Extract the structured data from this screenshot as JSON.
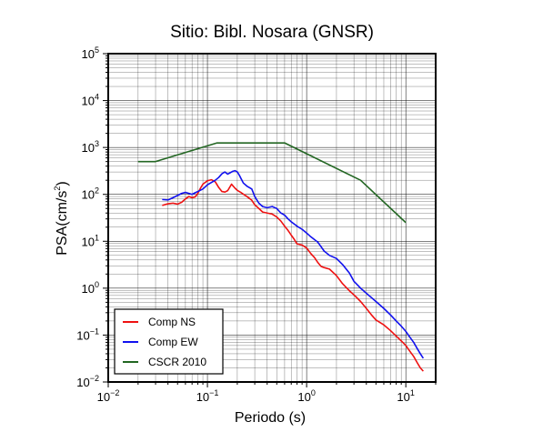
{
  "chart_data": {
    "type": "line",
    "title": "Sitio: Bibl. Nosara (GNSR)",
    "xlabel": "Periodo (s)",
    "ylabel_main": "PSA(cm/s",
    "ylabel_exp": "2",
    "ylabel_close": ")",
    "xscale": "log",
    "yscale": "log",
    "xlim": [
      0.01,
      20
    ],
    "ylim": [
      0.01,
      100000
    ],
    "grid": true,
    "legend_position": "bottom-left",
    "x_ticks": [
      {
        "base": "10",
        "exp": "−2"
      },
      {
        "base": "10",
        "exp": "−1"
      },
      {
        "base": "10",
        "exp": "0"
      },
      {
        "base": "10",
        "exp": "1"
      }
    ],
    "y_ticks": [
      {
        "base": "10",
        "exp": "−2"
      },
      {
        "base": "10",
        "exp": "−1"
      },
      {
        "base": "10",
        "exp": "0"
      },
      {
        "base": "10",
        "exp": "1"
      },
      {
        "base": "10",
        "exp": "2"
      },
      {
        "base": "10",
        "exp": "3"
      },
      {
        "base": "10",
        "exp": "4"
      },
      {
        "base": "10",
        "exp": "5"
      }
    ],
    "series": [
      {
        "name": "Comp NS",
        "color": "#ee1111",
        "points": [
          [
            0.035,
            58
          ],
          [
            0.04,
            63
          ],
          [
            0.045,
            65
          ],
          [
            0.05,
            62
          ],
          [
            0.055,
            68
          ],
          [
            0.06,
            80
          ],
          [
            0.065,
            90
          ],
          [
            0.07,
            85
          ],
          [
            0.075,
            88
          ],
          [
            0.08,
            105
          ],
          [
            0.085,
            135
          ],
          [
            0.09,
            165
          ],
          [
            0.1,
            195
          ],
          [
            0.11,
            205
          ],
          [
            0.12,
            185
          ],
          [
            0.13,
            140
          ],
          [
            0.14,
            115
          ],
          [
            0.15,
            112
          ],
          [
            0.16,
            120
          ],
          [
            0.175,
            165
          ],
          [
            0.19,
            135
          ],
          [
            0.2,
            122
          ],
          [
            0.22,
            108
          ],
          [
            0.25,
            90
          ],
          [
            0.28,
            75
          ],
          [
            0.3,
            60
          ],
          [
            0.33,
            50
          ],
          [
            0.36,
            42
          ],
          [
            0.4,
            40
          ],
          [
            0.45,
            38
          ],
          [
            0.5,
            33
          ],
          [
            0.55,
            27
          ],
          [
            0.6,
            21
          ],
          [
            0.65,
            17
          ],
          [
            0.7,
            13.5
          ],
          [
            0.75,
            11
          ],
          [
            0.8,
            8.8
          ],
          [
            0.9,
            8.3
          ],
          [
            1.0,
            7.2
          ],
          [
            1.1,
            5.5
          ],
          [
            1.2,
            4.5
          ],
          [
            1.3,
            3.5
          ],
          [
            1.4,
            2.9
          ],
          [
            1.5,
            2.75
          ],
          [
            1.7,
            2.55
          ],
          [
            2.0,
            1.85
          ],
          [
            2.3,
            1.25
          ],
          [
            2.7,
            0.88
          ],
          [
            3.0,
            0.72
          ],
          [
            3.5,
            0.52
          ],
          [
            4.0,
            0.37
          ],
          [
            4.5,
            0.27
          ],
          [
            5.0,
            0.21
          ],
          [
            6.0,
            0.165
          ],
          [
            7.0,
            0.125
          ],
          [
            8.0,
            0.095
          ],
          [
            9.0,
            0.075
          ],
          [
            10.0,
            0.06
          ],
          [
            11.0,
            0.045
          ],
          [
            12.0,
            0.035
          ],
          [
            13.0,
            0.026
          ],
          [
            14.0,
            0.02
          ],
          [
            15.0,
            0.017
          ]
        ]
      },
      {
        "name": "Comp EW",
        "color": "#1111ee",
        "points": [
          [
            0.035,
            78
          ],
          [
            0.04,
            76
          ],
          [
            0.045,
            85
          ],
          [
            0.05,
            95
          ],
          [
            0.055,
            105
          ],
          [
            0.06,
            110
          ],
          [
            0.065,
            105
          ],
          [
            0.07,
            100
          ],
          [
            0.075,
            108
          ],
          [
            0.08,
            115
          ],
          [
            0.09,
            130
          ],
          [
            0.1,
            160
          ],
          [
            0.11,
            180
          ],
          [
            0.12,
            200
          ],
          [
            0.13,
            230
          ],
          [
            0.14,
            275
          ],
          [
            0.15,
            300
          ],
          [
            0.16,
            270
          ],
          [
            0.17,
            290
          ],
          [
            0.18,
            310
          ],
          [
            0.19,
            320
          ],
          [
            0.2,
            300
          ],
          [
            0.21,
            255
          ],
          [
            0.22,
            210
          ],
          [
            0.23,
            175
          ],
          [
            0.25,
            150
          ],
          [
            0.28,
            130
          ],
          [
            0.3,
            90
          ],
          [
            0.33,
            65
          ],
          [
            0.36,
            55
          ],
          [
            0.4,
            52
          ],
          [
            0.45,
            55
          ],
          [
            0.5,
            50
          ],
          [
            0.55,
            40
          ],
          [
            0.6,
            36
          ],
          [
            0.65,
            30
          ],
          [
            0.7,
            26
          ],
          [
            0.8,
            21
          ],
          [
            0.9,
            18
          ],
          [
            1.0,
            15
          ],
          [
            1.1,
            12.5
          ],
          [
            1.3,
            9.5
          ],
          [
            1.5,
            6.2
          ],
          [
            1.7,
            5.0
          ],
          [
            2.0,
            4.3
          ],
          [
            2.3,
            3.2
          ],
          [
            2.7,
            2.1
          ],
          [
            3.0,
            1.4
          ],
          [
            3.5,
            1.0
          ],
          [
            4.0,
            0.78
          ],
          [
            5.0,
            0.52
          ],
          [
            6.0,
            0.37
          ],
          [
            7.0,
            0.27
          ],
          [
            8.0,
            0.2
          ],
          [
            9.0,
            0.155
          ],
          [
            10.0,
            0.12
          ],
          [
            11.0,
            0.09
          ],
          [
            12.0,
            0.07
          ],
          [
            13.0,
            0.052
          ],
          [
            14.0,
            0.04
          ],
          [
            15.0,
            0.032
          ]
        ]
      },
      {
        "name": "CSCR 2010",
        "color": "#226622",
        "points": [
          [
            0.02,
            500
          ],
          [
            0.03,
            500
          ],
          [
            0.125,
            1250
          ],
          [
            0.6,
            1250
          ],
          [
            3.5,
            200
          ],
          [
            10.0,
            25
          ]
        ]
      }
    ]
  }
}
